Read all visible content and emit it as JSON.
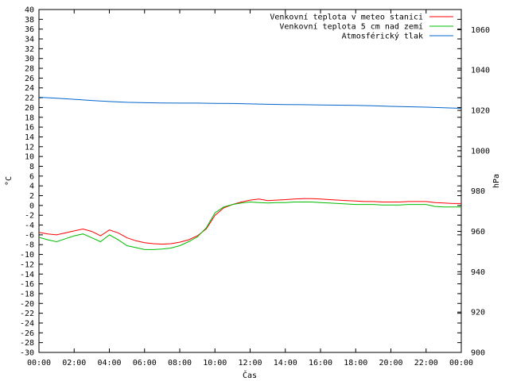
{
  "chart_data": {
    "type": "line",
    "xlabel": "Čas",
    "ylabel": "°C",
    "y2label": "hPa",
    "x_ticks": [
      "00:00",
      "02:00",
      "04:00",
      "06:00",
      "08:00",
      "10:00",
      "12:00",
      "14:00",
      "16:00",
      "18:00",
      "20:00",
      "22:00",
      "00:00"
    ],
    "x_unit": "hours",
    "xlim": [
      0,
      24
    ],
    "ylim": [
      -30,
      40
    ],
    "ystep": 2,
    "y2lim": [
      900,
      1070
    ],
    "y2_ticks": [
      900,
      920,
      940,
      960,
      980,
      1000,
      1020,
      1040,
      1060
    ],
    "grid": false,
    "legend_position": "top-right",
    "series": [
      {
        "name": "Venkovní teplota v meteo stanici",
        "color": "#ff0000",
        "axis": "left",
        "x": [
          0,
          0.5,
          1,
          1.5,
          2,
          2.5,
          3,
          3.5,
          4,
          4.5,
          5,
          5.5,
          6,
          6.5,
          7,
          7.5,
          8,
          8.5,
          9,
          9.5,
          10,
          10.5,
          11,
          11.5,
          12,
          12.5,
          13,
          13.5,
          14,
          14.5,
          15,
          15.5,
          16,
          16.5,
          17,
          17.5,
          18,
          18.5,
          19,
          19.5,
          20,
          20.5,
          21,
          21.5,
          22,
          22.5,
          23,
          23.5,
          24
        ],
        "values": [
          -5.5,
          -5.8,
          -6.0,
          -5.6,
          -5.2,
          -4.8,
          -5.3,
          -6.2,
          -5.0,
          -5.6,
          -6.6,
          -7.2,
          -7.6,
          -7.8,
          -7.9,
          -7.8,
          -7.5,
          -7.0,
          -6.2,
          -4.8,
          -2.0,
          -0.5,
          0.2,
          0.7,
          1.1,
          1.3,
          1.0,
          1.1,
          1.2,
          1.3,
          1.4,
          1.4,
          1.3,
          1.2,
          1.1,
          1.0,
          0.9,
          0.8,
          0.8,
          0.7,
          0.7,
          0.7,
          0.8,
          0.8,
          0.8,
          0.6,
          0.5,
          0.4,
          0.4
        ]
      },
      {
        "name": "Venkovní teplota 5 cm nad zemí",
        "color": "#00bb00",
        "axis": "left",
        "x": [
          0,
          0.5,
          1,
          1.5,
          2,
          2.5,
          3,
          3.5,
          4,
          4.5,
          5,
          5.5,
          6,
          6.5,
          7,
          7.5,
          8,
          8.5,
          9,
          9.5,
          10,
          10.5,
          11,
          11.5,
          12,
          12.5,
          13,
          13.5,
          14,
          14.5,
          15,
          15.5,
          16,
          16.5,
          17,
          17.5,
          18,
          18.5,
          19,
          19.5,
          20,
          20.5,
          21,
          21.5,
          22,
          22.5,
          23,
          23.5,
          24
        ],
        "values": [
          -6.5,
          -7.0,
          -7.4,
          -6.8,
          -6.2,
          -5.8,
          -6.6,
          -7.4,
          -6.0,
          -7.0,
          -8.2,
          -8.6,
          -9.0,
          -9.0,
          -8.9,
          -8.7,
          -8.2,
          -7.4,
          -6.4,
          -4.6,
          -1.5,
          -0.3,
          0.2,
          0.5,
          0.7,
          0.6,
          0.5,
          0.6,
          0.6,
          0.7,
          0.7,
          0.7,
          0.6,
          0.5,
          0.4,
          0.3,
          0.2,
          0.2,
          0.2,
          0.1,
          0.1,
          0.1,
          0.2,
          0.2,
          0.2,
          -0.2,
          -0.3,
          -0.3,
          -0.3
        ]
      },
      {
        "name": "Atmosférický tlak",
        "color": "#0066cc",
        "axis": "right",
        "x": [
          0,
          1,
          2,
          3,
          4,
          5,
          6,
          7,
          8,
          9,
          10,
          11,
          12,
          13,
          14,
          15,
          16,
          17,
          18,
          19,
          20,
          21,
          22,
          23,
          24
        ],
        "values": [
          1026.5,
          1026.0,
          1025.5,
          1024.9,
          1024.4,
          1024.0,
          1023.8,
          1023.7,
          1023.6,
          1023.6,
          1023.5,
          1023.4,
          1023.2,
          1023.0,
          1022.9,
          1022.8,
          1022.7,
          1022.6,
          1022.5,
          1022.3,
          1022.0,
          1021.8,
          1021.6,
          1021.3,
          1021.0
        ]
      }
    ]
  }
}
